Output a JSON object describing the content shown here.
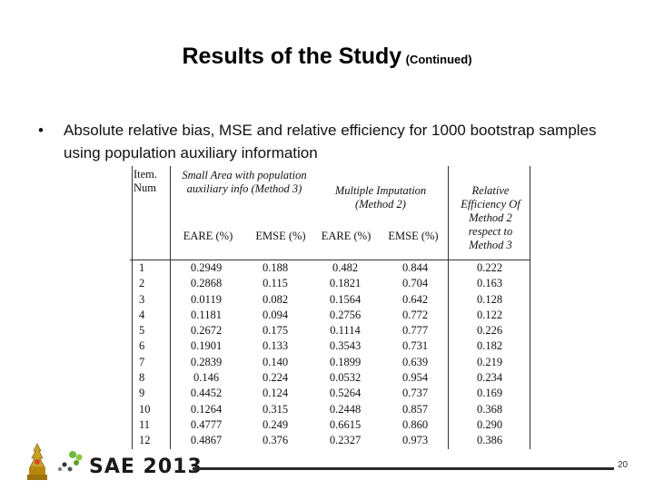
{
  "slide": {
    "title_main": "Results of the Study",
    "title_sub": "(Continued)",
    "bullet_symbol": "•",
    "bullet_text": "Absolute relative bias, MSE and relative efficiency for 1000 bootstrap samples using population auxiliary information",
    "page_number": "20"
  },
  "logo": {
    "text": "SAE 2013",
    "emblem_icon": "university-emblem-icon",
    "leaf_icon": "green-leaf-icon"
  },
  "table": {
    "headers": {
      "item": "Item. Num",
      "group1": "Small Area with population auxiliary info (Method 3)",
      "group2": "Multiple Imputation (Method 2)",
      "relative": "Relative Efficiency Of Method 2 respect to Method 3",
      "eare1": "EARE (%)",
      "emse1": "EMSE (%)",
      "eare2": "EARE (%)",
      "emse2": "EMSE (%)"
    },
    "rows": [
      [
        "1",
        "0.2949",
        "0.188",
        "0.482",
        "0.844",
        "0.222"
      ],
      [
        "2",
        "0.2868",
        "0.115",
        "0.1821",
        "0.704",
        "0.163"
      ],
      [
        "3",
        "0.0119",
        "0.082",
        "0.1564",
        "0.642",
        "0.128"
      ],
      [
        "4",
        "0.1181",
        "0.094",
        "0.2756",
        "0.772",
        "0.122"
      ],
      [
        "5",
        "0.2672",
        "0.175",
        "0.1114",
        "0.777",
        "0.226"
      ],
      [
        "6",
        "0.1901",
        "0.133",
        "0.3543",
        "0.731",
        "0.182"
      ],
      [
        "7",
        "0.2839",
        "0.140",
        "0.1899",
        "0.639",
        "0.219"
      ],
      [
        "8",
        "0.146",
        "0.224",
        "0.0532",
        "0.954",
        "0.234"
      ],
      [
        "9",
        "0.4452",
        "0.124",
        "0.5264",
        "0.737",
        "0.169"
      ],
      [
        "10",
        "0.1264",
        "0.315",
        "0.2448",
        "0.857",
        "0.368"
      ],
      [
        "11",
        "0.4777",
        "0.249",
        "0.6615",
        "0.860",
        "0.290"
      ],
      [
        "12",
        "0.4867",
        "0.376",
        "0.2327",
        "0.973",
        "0.386"
      ]
    ]
  }
}
